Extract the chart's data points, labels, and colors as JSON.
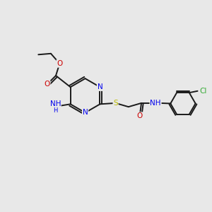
{
  "bg": "#e8e8e8",
  "bond_color": "#1a1a1a",
  "N_color": "#0000ee",
  "O_color": "#cc0000",
  "S_color": "#bbbb00",
  "Cl_color": "#33aa33",
  "lw": 1.4,
  "fs": 7.5,
  "figsize": [
    3.0,
    3.0
  ],
  "dpi": 100,
  "xlim": [
    0,
    10
  ],
  "ylim": [
    0,
    10
  ]
}
